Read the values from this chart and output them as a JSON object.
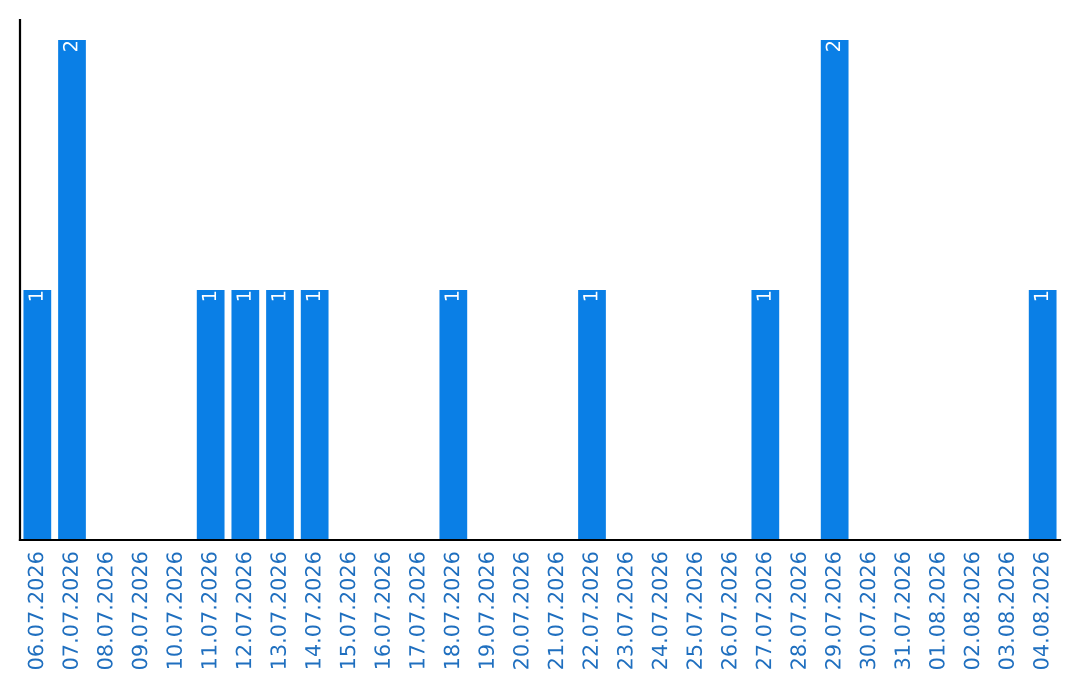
{
  "chart_data": {
    "type": "bar",
    "categories": [
      "06.07.2026",
      "07.07.2026",
      "08.07.2026",
      "09.07.2026",
      "10.07.2026",
      "11.07.2026",
      "12.07.2026",
      "13.07.2026",
      "14.07.2026",
      "15.07.2026",
      "16.07.2026",
      "17.07.2026",
      "18.07.2026",
      "19.07.2026",
      "20.07.2026",
      "21.07.2026",
      "22.07.2026",
      "23.07.2026",
      "24.07.2026",
      "25.07.2026",
      "26.07.2026",
      "27.07.2026",
      "28.07.2026",
      "29.07.2026",
      "30.07.2026",
      "31.07.2026",
      "01.08.2026",
      "02.08.2026",
      "03.08.2026",
      "04.08.2026"
    ],
    "values": [
      1,
      2,
      0,
      0,
      0,
      1,
      1,
      1,
      1,
      0,
      0,
      0,
      1,
      0,
      0,
      0,
      1,
      0,
      0,
      0,
      0,
      1,
      0,
      2,
      0,
      0,
      0,
      0,
      0,
      1
    ],
    "value_labels": [
      "1",
      "2",
      null,
      null,
      null,
      "1",
      "1",
      "1",
      "1",
      null,
      null,
      null,
      "1",
      null,
      null,
      null,
      "1",
      null,
      null,
      null,
      null,
      "1",
      null,
      "2",
      null,
      null,
      null,
      null,
      null,
      "1"
    ],
    "color": "#0a7fe6",
    "grid": false,
    "legend": false
  }
}
